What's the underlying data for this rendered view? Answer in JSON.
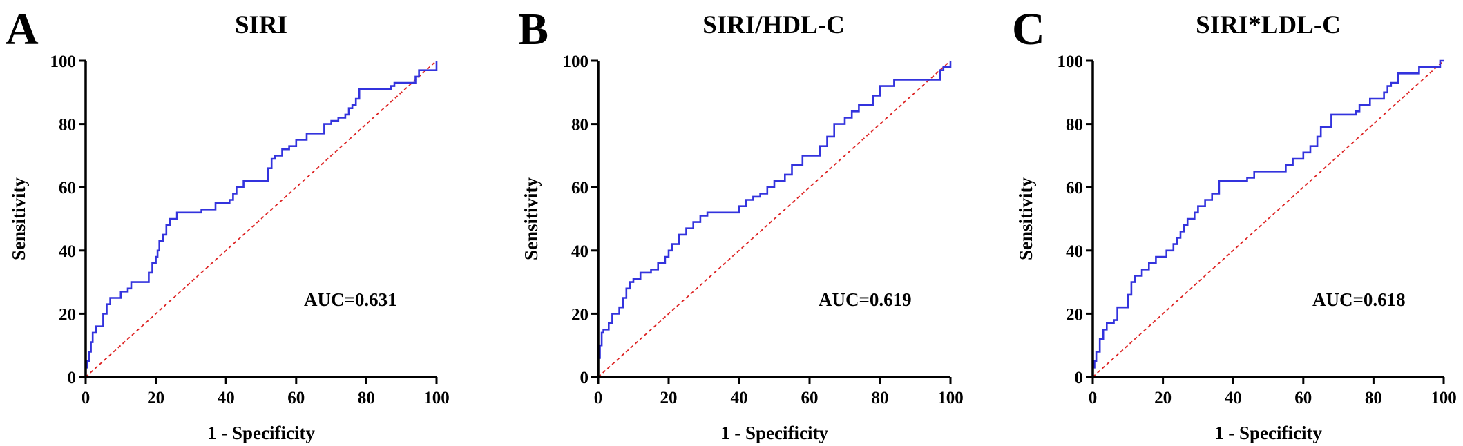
{
  "chart_data": [
    {
      "type": "line",
      "panel_label": "A",
      "title": "SIRI",
      "xlabel": "1 - Specificity",
      "ylabel": "Sensitivity",
      "xlim": [
        0,
        100
      ],
      "ylim": [
        0,
        100
      ],
      "xticks": [
        0,
        20,
        40,
        60,
        80,
        100
      ],
      "yticks": [
        0,
        20,
        40,
        60,
        80,
        100
      ],
      "annotation": "AUC=0.631",
      "roc_color": "#3333dd",
      "reference_color": "#dd2222",
      "series": [
        {
          "x": [
            0,
            0,
            0.5,
            0.5,
            1,
            1,
            1.5,
            1.5,
            2,
            2,
            3,
            3,
            5,
            5,
            6,
            6,
            7,
            7,
            10,
            10,
            12,
            12,
            13,
            13,
            18,
            18,
            19,
            19,
            20,
            20,
            20.5,
            20.5,
            21,
            21,
            22,
            22,
            23,
            23,
            24,
            24,
            26,
            26,
            33,
            33,
            37,
            37,
            41,
            41,
            42,
            42,
            43,
            43,
            45,
            45,
            52,
            52,
            53,
            53,
            54,
            54,
            56,
            56,
            58,
            58,
            60,
            60,
            63,
            63,
            68,
            68,
            70,
            70,
            72,
            72,
            74,
            74,
            75,
            75,
            76,
            76,
            77,
            77,
            78,
            78,
            87,
            87,
            88,
            88,
            94,
            94,
            95,
            95,
            100,
            100
          ],
          "y": [
            0,
            3,
            3,
            5,
            5,
            8,
            8,
            11,
            11,
            14,
            14,
            16,
            16,
            20,
            20,
            23,
            23,
            25,
            25,
            27,
            27,
            28,
            28,
            30,
            30,
            33,
            33,
            36,
            36,
            38,
            38,
            40,
            40,
            43,
            43,
            45,
            45,
            48,
            48,
            50,
            50,
            52,
            52,
            53,
            53,
            55,
            55,
            56,
            56,
            58,
            58,
            60,
            60,
            62,
            62,
            66,
            66,
            69,
            69,
            70,
            70,
            72,
            72,
            73,
            73,
            75,
            75,
            77,
            77,
            80,
            80,
            81,
            81,
            82,
            82,
            83,
            83,
            85,
            85,
            86,
            86,
            88,
            88,
            91,
            91,
            92,
            92,
            93,
            93,
            95,
            95,
            97,
            97,
            100
          ]
        },
        {
          "name": "reference",
          "x": [
            0,
            100
          ],
          "y": [
            0,
            100
          ]
        }
      ]
    },
    {
      "type": "line",
      "panel_label": "B",
      "title": "SIRI/HDL-C",
      "xlabel": "1 - Specificity",
      "ylabel": "Sensitivity",
      "xlim": [
        0,
        100
      ],
      "ylim": [
        0,
        100
      ],
      "xticks": [
        0,
        20,
        40,
        60,
        80,
        100
      ],
      "yticks": [
        0,
        20,
        40,
        60,
        80,
        100
      ],
      "annotation": "AUC=0.619",
      "roc_color": "#3333dd",
      "reference_color": "#dd2222",
      "series": [
        {
          "x": [
            0,
            0,
            0.5,
            0.5,
            1,
            1,
            1.5,
            1.5,
            3,
            3,
            4,
            4,
            6,
            6,
            7,
            7,
            8,
            8,
            9,
            9,
            10,
            10,
            12,
            12,
            15,
            15,
            17,
            17,
            19,
            19,
            20,
            20,
            21,
            21,
            23,
            23,
            25,
            25,
            27,
            27,
            29,
            29,
            31,
            31,
            40,
            40,
            42,
            42,
            44,
            44,
            46,
            46,
            48,
            48,
            50,
            50,
            53,
            53,
            55,
            55,
            58,
            58,
            63,
            63,
            65,
            65,
            67,
            67,
            70,
            70,
            72,
            72,
            74,
            74,
            78,
            78,
            80,
            80,
            84,
            84,
            97,
            97,
            98,
            98,
            100,
            100
          ],
          "y": [
            0,
            6,
            6,
            10,
            10,
            14,
            14,
            15,
            15,
            17,
            17,
            20,
            20,
            22,
            22,
            25,
            25,
            28,
            28,
            30,
            30,
            31,
            31,
            33,
            33,
            34,
            34,
            36,
            36,
            38,
            38,
            40,
            40,
            42,
            42,
            45,
            45,
            47,
            47,
            49,
            49,
            51,
            51,
            52,
            52,
            54,
            54,
            56,
            56,
            57,
            57,
            58,
            58,
            60,
            60,
            62,
            62,
            64,
            64,
            67,
            67,
            70,
            70,
            73,
            73,
            76,
            76,
            80,
            80,
            82,
            82,
            84,
            84,
            86,
            86,
            89,
            89,
            92,
            92,
            94,
            94,
            97,
            97,
            98,
            98,
            100
          ]
        },
        {
          "name": "reference",
          "x": [
            0,
            100
          ],
          "y": [
            0,
            100
          ]
        }
      ]
    },
    {
      "type": "line",
      "panel_label": "C",
      "title": "SIRI*LDL-C",
      "xlabel": "1 - Specificity",
      "ylabel": "Sensitivity",
      "xlim": [
        0,
        100
      ],
      "ylim": [
        0,
        100
      ],
      "xticks": [
        0,
        20,
        40,
        60,
        80,
        100
      ],
      "yticks": [
        0,
        20,
        40,
        60,
        80,
        100
      ],
      "annotation": "AUC=0.618",
      "roc_color": "#3333dd",
      "reference_color": "#dd2222",
      "series": [
        {
          "x": [
            0,
            0,
            0.5,
            0.5,
            1,
            1,
            2,
            2,
            3,
            3,
            4,
            4,
            6,
            6,
            7,
            7,
            10,
            10,
            11,
            11,
            12,
            12,
            14,
            14,
            16,
            16,
            18,
            18,
            21,
            21,
            23,
            23,
            24,
            24,
            25,
            25,
            26,
            26,
            27,
            27,
            29,
            29,
            30,
            30,
            32,
            32,
            34,
            34,
            36,
            36,
            44,
            44,
            46,
            46,
            55,
            55,
            57,
            57,
            60,
            60,
            62,
            62,
            64,
            64,
            65,
            65,
            68,
            68,
            75,
            75,
            76,
            76,
            79,
            79,
            83,
            83,
            84,
            84,
            85,
            85,
            87,
            87,
            93,
            93,
            99,
            99,
            100
          ],
          "y": [
            0,
            3,
            3,
            5,
            5,
            8,
            8,
            12,
            12,
            15,
            15,
            17,
            17,
            18,
            18,
            22,
            22,
            26,
            26,
            30,
            30,
            32,
            32,
            34,
            34,
            36,
            36,
            38,
            38,
            40,
            40,
            42,
            42,
            44,
            44,
            46,
            46,
            48,
            48,
            50,
            50,
            52,
            52,
            54,
            54,
            56,
            56,
            58,
            58,
            62,
            62,
            63,
            63,
            65,
            65,
            67,
            67,
            69,
            69,
            71,
            71,
            73,
            73,
            76,
            76,
            79,
            79,
            83,
            83,
            84,
            84,
            86,
            86,
            88,
            88,
            90,
            90,
            92,
            92,
            93,
            93,
            96,
            96,
            98,
            98,
            100,
            100
          ]
        },
        {
          "name": "reference",
          "x": [
            0,
            100
          ],
          "y": [
            0,
            100
          ]
        }
      ]
    }
  ]
}
